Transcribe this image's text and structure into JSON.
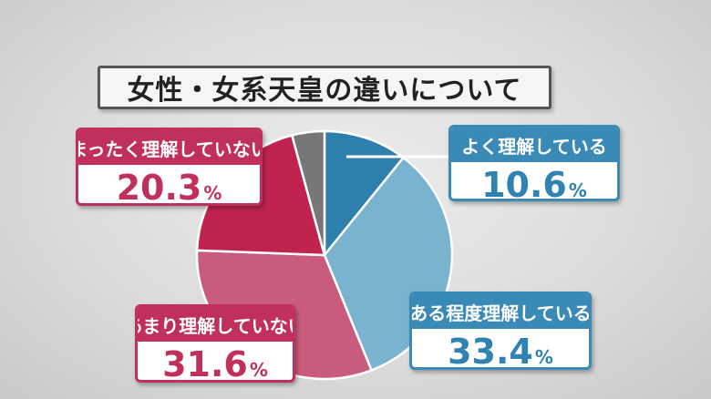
{
  "chart_data": {
    "type": "pie",
    "title": "女性・女系天皇の違いについて",
    "unit": "%",
    "slices": [
      {
        "label": "よく理解している",
        "value": 10.6,
        "value_text": "10.6",
        "color": "#2e7fae"
      },
      {
        "label": "ある程度理解している",
        "value": 33.4,
        "value_text": "33.4",
        "color": "#7ab3cf"
      },
      {
        "label": "あまり理解していない",
        "value": 31.6,
        "value_text": "31.6",
        "color": "#c95c7c"
      },
      {
        "label": "まったく理解していない",
        "value": 20.3,
        "value_text": "20.3",
        "color": "#c0244e"
      },
      {
        "label": "",
        "value": 4.1,
        "value_text": "",
        "color": "#777777"
      }
    ]
  }
}
